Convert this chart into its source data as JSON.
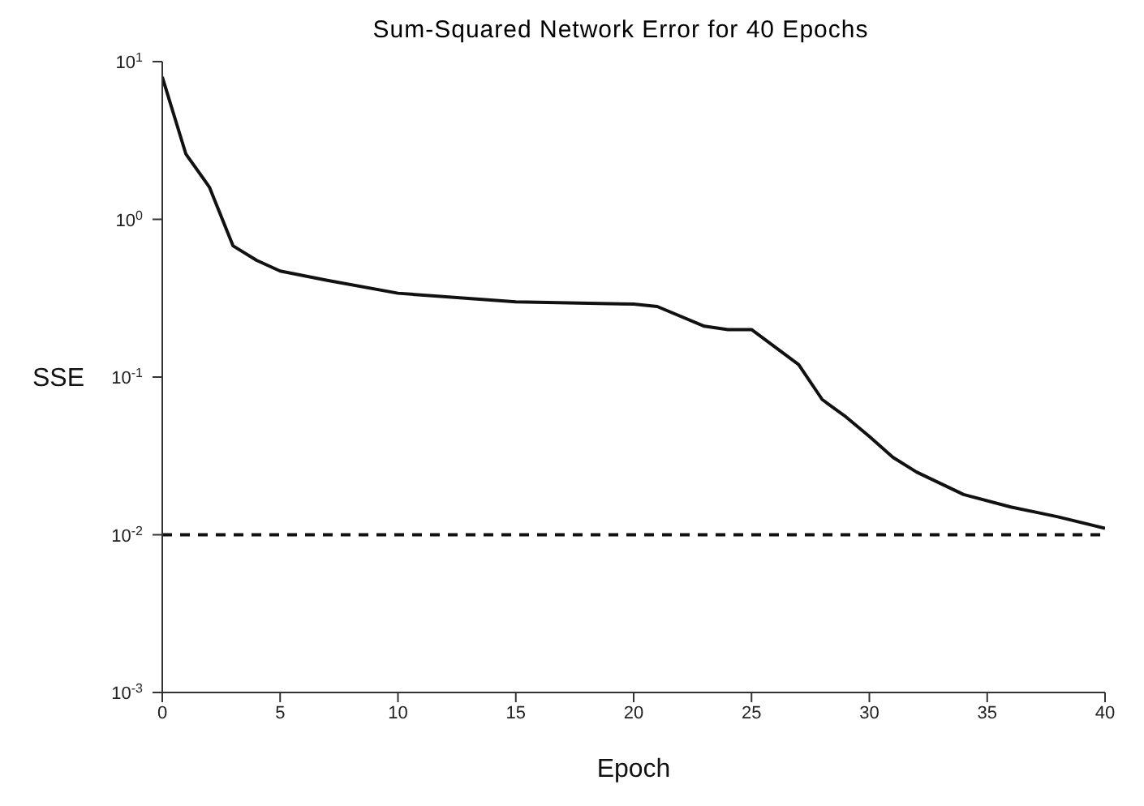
{
  "chart_data": {
    "type": "line",
    "title": "Sum-Squared Network Error for 40 Epochs",
    "xlabel": "Epoch",
    "ylabel": "SSE",
    "x": [
      0,
      1,
      2,
      3,
      4,
      5,
      7,
      10,
      15,
      20,
      21,
      23,
      24,
      25,
      27,
      28,
      29,
      30,
      31,
      32,
      34,
      36,
      38,
      40
    ],
    "series": [
      {
        "color": "#111111",
        "values": [
          8,
          2.6,
          1.6,
          0.68,
          0.55,
          0.47,
          0.41,
          0.34,
          0.3,
          0.29,
          0.28,
          0.21,
          0.2,
          0.2,
          0.12,
          0.072,
          0.056,
          0.042,
          0.031,
          0.025,
          0.018,
          0.015,
          0.013,
          0.011
        ]
      }
    ],
    "log": "y",
    "xlim": [
      0,
      40
    ],
    "xticks": [
      0,
      5,
      10,
      15,
      20,
      25,
      30,
      35,
      40
    ],
    "ylim": [
      0.001,
      10
    ],
    "yticks": [
      {
        "value": 0.001,
        "label": "10$^{-3}$"
      },
      {
        "value": 0.01,
        "label": "10$^{-2}$"
      },
      {
        "value": 0.1,
        "label": "10$^{-1}$"
      },
      {
        "value": 1,
        "label": "10$^{0}$"
      },
      {
        "value": 10,
        "label": "10$^{1}$"
      }
    ],
    "ref_lines": [
      {
        "axis": "y",
        "value": 0.01,
        "color": "#111111",
        "line_style": "dashed"
      }
    ],
    "grid": false,
    "legend": false,
    "marker": "none",
    "line_style": "solid"
  }
}
